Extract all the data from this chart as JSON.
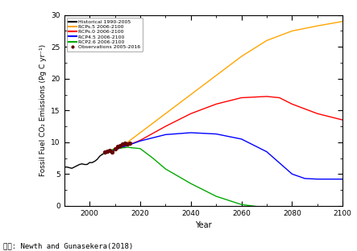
{
  "title": "",
  "xlabel": "Year",
  "ylabel": "Fossil Fuel CO₂ Emissions (Pg C yr⁻¹)",
  "xlim": [
    1990,
    2100
  ],
  "ylim": [
    0,
    30
  ],
  "yticks": [
    0,
    5,
    10,
    15,
    20,
    25,
    30
  ],
  "xticks": [
    2000,
    2020,
    2040,
    2060,
    2080,
    2100
  ],
  "source_text": "출처: Newth and Gunasekera(2018)",
  "legend_entries": [
    {
      "label": "Historical 1990-2005",
      "color": "#000000",
      "type": "line"
    },
    {
      "label": "RCPs.5 2006-2100",
      "color": "#FFA500",
      "type": "line"
    },
    {
      "label": "RCPs.0 2006-2100",
      "color": "#FF0000",
      "type": "line"
    },
    {
      "label": "RCP4.5 2006-2100",
      "color": "#0000FF",
      "type": "line"
    },
    {
      "label": "RCP2.6 2006-2100",
      "color": "#00AA00",
      "type": "line"
    },
    {
      "label": "Observations 2005-2016",
      "color": "#660000",
      "type": "scatter"
    }
  ],
  "historical": {
    "x": [
      1990,
      1991,
      1992,
      1993,
      1994,
      1995,
      1996,
      1997,
      1998,
      1999,
      2000,
      2001,
      2002,
      2003,
      2004,
      2005
    ],
    "y": [
      6.1,
      6.1,
      6.0,
      5.9,
      6.1,
      6.3,
      6.5,
      6.6,
      6.5,
      6.5,
      6.8,
      6.8,
      7.0,
      7.3,
      7.8,
      8.1
    ],
    "color": "#000000"
  },
  "rcp85": {
    "x": [
      2005,
      2010,
      2015,
      2020,
      2030,
      2040,
      2050,
      2060,
      2070,
      2080,
      2090,
      2100
    ],
    "y": [
      8.1,
      9.0,
      10.0,
      11.5,
      14.5,
      17.5,
      20.5,
      23.5,
      26.0,
      27.5,
      28.3,
      29.0
    ],
    "color": "#FFA500"
  },
  "rcp60": {
    "x": [
      2005,
      2010,
      2015,
      2020,
      2030,
      2040,
      2050,
      2060,
      2070,
      2075,
      2080,
      2090,
      2100
    ],
    "y": [
      8.1,
      8.8,
      9.5,
      10.3,
      12.5,
      14.5,
      16.0,
      17.0,
      17.2,
      17.0,
      16.0,
      14.5,
      13.5
    ],
    "color": "#FF0000"
  },
  "rcp45": {
    "x": [
      2005,
      2010,
      2015,
      2020,
      2030,
      2040,
      2050,
      2060,
      2070,
      2080,
      2085,
      2090,
      2100
    ],
    "y": [
      8.1,
      8.8,
      9.5,
      10.2,
      11.2,
      11.5,
      11.3,
      10.5,
      8.5,
      5.0,
      4.3,
      4.2,
      4.2
    ],
    "color": "#0000FF"
  },
  "rcp26": {
    "x": [
      2005,
      2010,
      2015,
      2020,
      2025,
      2030,
      2040,
      2050,
      2060,
      2070,
      2080,
      2090,
      2100
    ],
    "y": [
      8.1,
      9.0,
      9.2,
      9.0,
      7.5,
      5.8,
      3.5,
      1.5,
      0.2,
      -0.3,
      -0.5,
      -0.7,
      -0.8
    ],
    "color": "#00AA00"
  },
  "observations": {
    "x": [
      2006,
      2007,
      2008,
      2009,
      2010,
      2011,
      2012,
      2013,
      2014,
      2015,
      2016
    ],
    "y": [
      8.4,
      8.6,
      8.7,
      8.5,
      9.0,
      9.3,
      9.5,
      9.7,
      9.8,
      9.7,
      9.9
    ],
    "color": "#660000"
  },
  "background_color": "#ffffff",
  "grid": false,
  "figsize": [
    4.43,
    3.12
  ],
  "dpi": 100
}
